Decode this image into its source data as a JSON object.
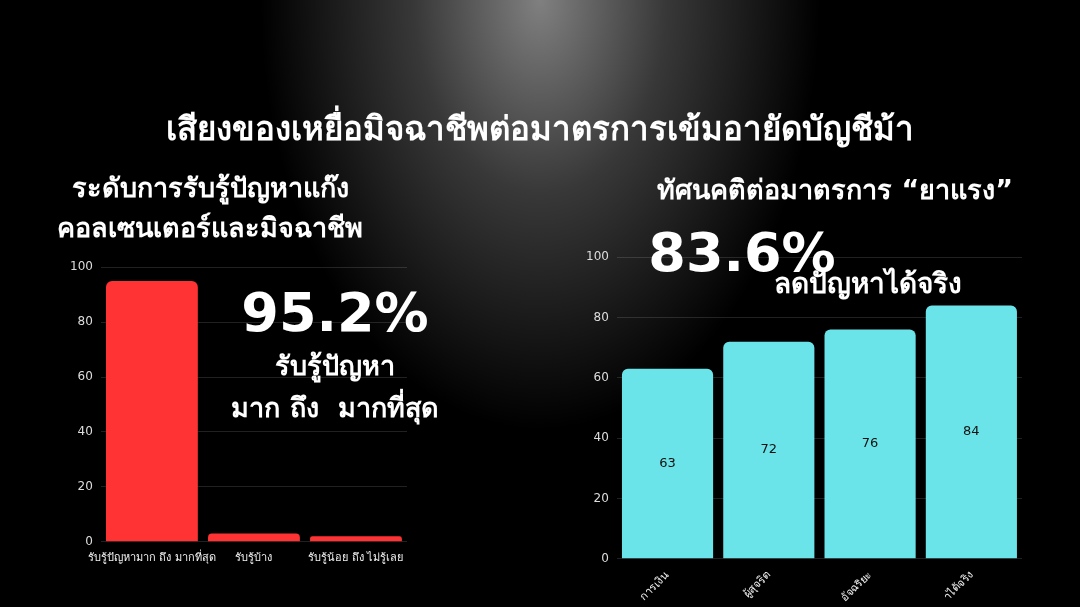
{
  "chart_data": [
    {
      "type": "bar",
      "title": "เสียงของเหยื่อมิจฉาชีพต่อมาตรการเข้มอายัดบัญชีม้า",
      "subtitle": "ระดับการรับรู้ปัญหาแก๊ง\nคอลเซนเตอร์และมิจฉาชีพ",
      "categories": [
        "รับรู้ปัญหามาก ถึง มากที่สุด",
        "รับรู้บ้าง",
        "รับรู้น้อย ถึง ไม่รู้เลย"
      ],
      "values": [
        95,
        3,
        2
      ],
      "color": "#ff3333",
      "ylim": [
        0,
        100
      ],
      "yticks": [
        0,
        20,
        40,
        60,
        80,
        100
      ],
      "grid": "y",
      "annotations": [
        "95.2%",
        "รับรู้ปัญหา",
        "มาก ถึง  มากที่สุด"
      ]
    },
    {
      "type": "bar",
      "title": "ทัศนคติต่อมาตรการ “ยาแรง”",
      "categories": [
        "การเงิน",
        "ผู้สุจริต",
        "อัจฉริยะ",
        "าได้จริง"
      ],
      "values": [
        63,
        72,
        76,
        84
      ],
      "color": "#6be4e9",
      "ylim": [
        0,
        100
      ],
      "yticks": [
        0,
        20,
        40,
        60,
        80,
        100
      ],
      "grid": "y",
      "data_labels": true,
      "annotations": [
        "83.6%",
        "ลดปัญหาได้จริง"
      ]
    }
  ]
}
